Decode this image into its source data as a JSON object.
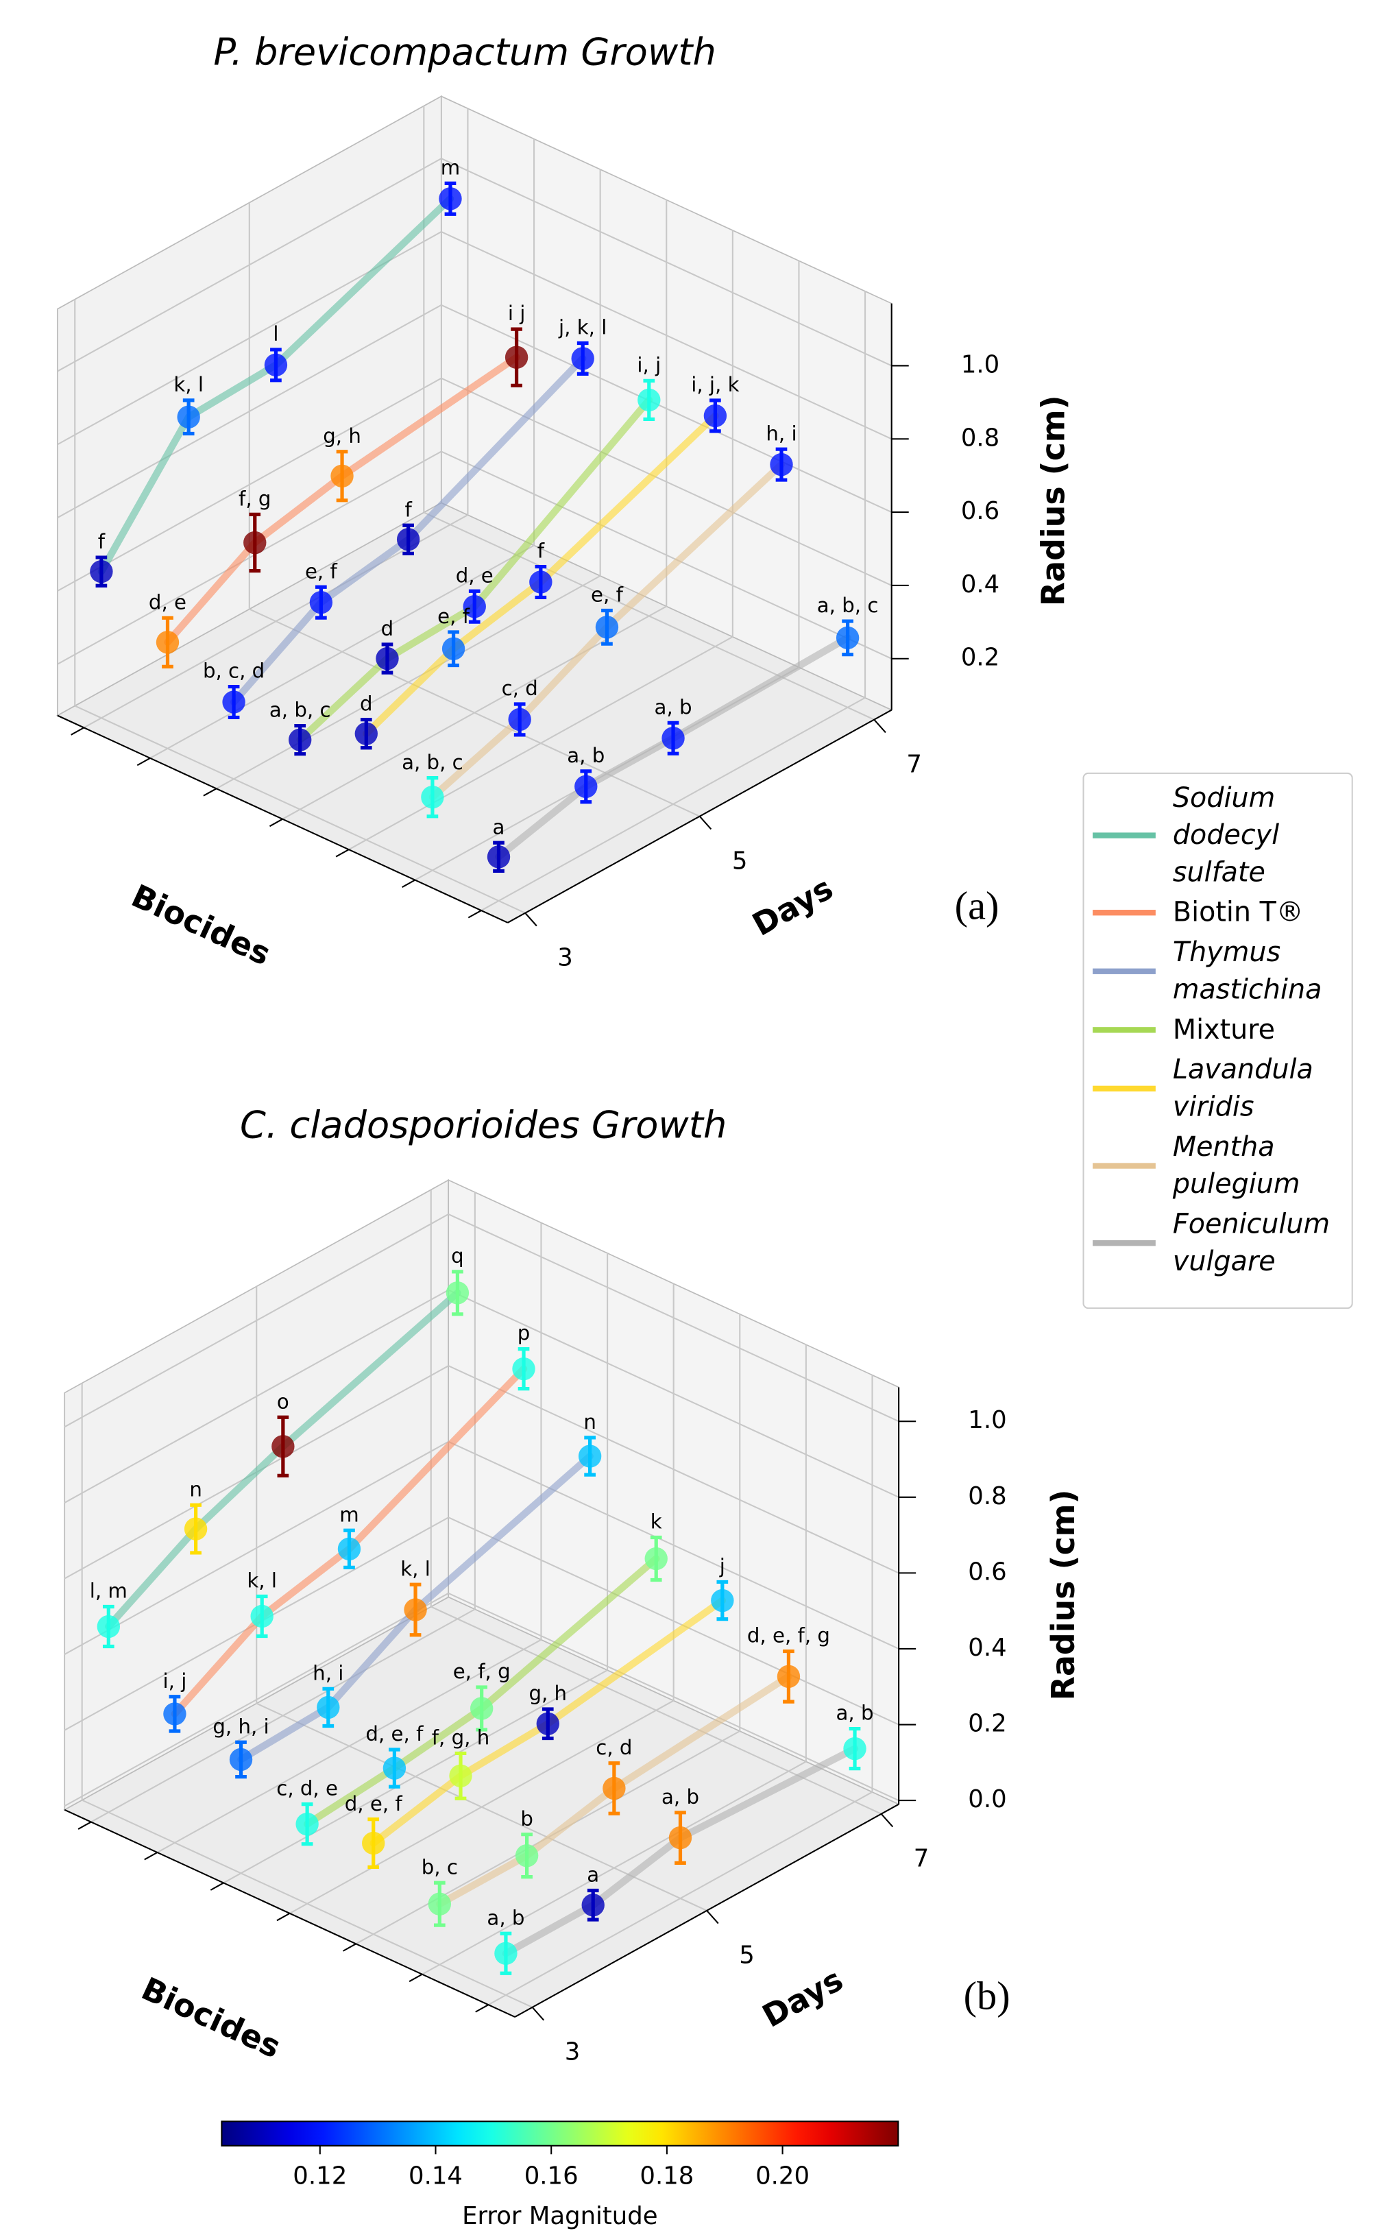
{
  "chart_data": [
    {
      "type": "line3d",
      "title": "P. brevicompactum Growth",
      "panel_label": "(a)",
      "xlabel": "Days",
      "ylabel": "Biocides",
      "zlabel": "Radius (cm)",
      "x": [
        3,
        4,
        5,
        7
      ],
      "xlim": [
        2.8,
        7.2
      ],
      "xticks": [
        3,
        5,
        7
      ],
      "zlim": [
        0.06,
        1.17
      ],
      "zticks": [
        0.2,
        0.4,
        0.6,
        0.8,
        {
          "value": 1,
          "label": "1.0"
        }
      ],
      "grid": true,
      "series": [
        {
          "name": "Sodium dodecyl sulfate",
          "italic": true,
          "color": "#66c2a5",
          "values": [
            0.46,
            0.75,
            0.76,
            0.95
          ],
          "errors": [
            0.11,
            0.13,
            0.12,
            0.12
          ],
          "letters": [
            "f",
            "k, l",
            "l",
            "m"
          ]
        },
        {
          "name": "Biotin T®",
          "italic": false,
          "color": "#fc8d62",
          "values": [
            0.35,
            0.49,
            0.54,
            0.6
          ],
          "errors": [
            0.19,
            0.22,
            0.19,
            0.22
          ],
          "letters": [
            "d, e",
            "f, g",
            "g, h",
            "i j"
          ]
        },
        {
          "name": "Thymus mastichina",
          "italic": true,
          "color": "#8da0cb",
          "values": [
            0.27,
            0.41,
            0.45,
            0.68
          ],
          "errors": [
            0.12,
            0.12,
            0.11,
            0.12
          ],
          "letters": [
            "b, c, d",
            "e, f",
            "f",
            "j, k, l"
          ]
        },
        {
          "name": "Mixture",
          "italic": false,
          "color": "#a6d854",
          "values": [
            0.25,
            0.34,
            0.35,
            0.65
          ],
          "errors": [
            0.11,
            0.11,
            0.12,
            0.15
          ],
          "letters": [
            "a, b, c",
            "d",
            "d, e",
            "i, j"
          ]
        },
        {
          "name": "Lavandula viridis",
          "italic": true,
          "color": "#ffd92f",
          "values": [
            0.35,
            0.45,
            0.5,
            0.69
          ],
          "errors": [
            0.11,
            0.13,
            0.12,
            0.12
          ],
          "letters": [
            "d",
            "e, f",
            "f",
            "i, j, k"
          ]
        },
        {
          "name": "Mentha pulegium",
          "italic": true,
          "color": "#e5c494",
          "values": [
            0.26,
            0.34,
            0.46,
            0.64
          ],
          "errors": [
            0.15,
            0.12,
            0.13,
            0.12
          ],
          "letters": [
            "a, b, c",
            "c, d",
            "e, f",
            "h, i"
          ]
        },
        {
          "name": "Foeniculum vulgare",
          "italic": true,
          "color": "#b3b3b3",
          "values": [
            0.18,
            0.24,
            0.24,
            0.25
          ],
          "errors": [
            0.11,
            0.12,
            0.12,
            0.13
          ],
          "letters": [
            "a",
            "a, b",
            "a, b",
            "a, b, c"
          ]
        }
      ]
    },
    {
      "type": "line3d",
      "title": "C. cladosporioides Growth",
      "panel_label": "(b)",
      "xlabel": "Days",
      "ylabel": "Biocides",
      "zlabel": "Radius (cm)",
      "x": [
        3,
        4,
        5,
        7
      ],
      "xlim": [
        2.8,
        7.2
      ],
      "xticks": [
        3,
        5,
        7
      ],
      "zlim": [
        -0.01,
        1.09
      ],
      "zticks": [
        {
          "value": 0,
          "label": "0.0"
        },
        0.2,
        0.4,
        0.6,
        0.8,
        {
          "value": 1,
          "label": "1.0"
        }
      ],
      "grid": true,
      "series": [
        {
          "color": "#66c2a5",
          "values": [
            0.48,
            0.61,
            0.7,
            0.85
          ],
          "errors": [
            0.15,
            0.18,
            0.22,
            0.16
          ],
          "letters": [
            "l, m",
            "n",
            "o",
            "q"
          ]
        },
        {
          "color": "#fc8d62",
          "values": [
            0.33,
            0.46,
            0.51,
            0.73
          ],
          "errors": [
            0.13,
            0.15,
            0.14,
            0.15
          ],
          "letters": [
            "i, j",
            "k, l",
            "m",
            "p"
          ]
        },
        {
          "color": "#8da0cb",
          "values": [
            0.29,
            0.3,
            0.43,
            0.58
          ],
          "errors": [
            0.13,
            0.14,
            0.19,
            0.14
          ],
          "letters": [
            "g, h, i",
            "h, i",
            "k, l",
            "n"
          ]
        },
        {
          "color": "#a6d854",
          "values": [
            0.2,
            0.22,
            0.25,
            0.39
          ],
          "errors": [
            0.15,
            0.14,
            0.16,
            0.16
          ],
          "letters": [
            "c, d, e",
            "d, e, f",
            "e, f, g",
            "k"
          ]
        },
        {
          "color": "#ffd92f",
          "values": [
            0.23,
            0.28,
            0.29,
            0.36
          ],
          "errors": [
            0.18,
            0.17,
            0.11,
            0.14
          ],
          "letters": [
            "d, e, f",
            "f, g, h",
            "g, h",
            "j"
          ]
        },
        {
          "color": "#e5c494",
          "values": [
            0.15,
            0.15,
            0.2,
            0.24
          ],
          "errors": [
            0.16,
            0.16,
            0.19,
            0.19
          ],
          "letters": [
            "b, c",
            "b",
            "c, d",
            "d, e, f, g"
          ]
        },
        {
          "color": "#b3b3b3",
          "values": [
            0.1,
            0.1,
            0.15,
            0.13
          ],
          "errors": [
            0.15,
            0.11,
            0.19,
            0.15
          ],
          "letters": [
            "a, b",
            "a",
            "a, b",
            "a, b"
          ]
        }
      ]
    }
  ],
  "colorbar": {
    "label": "Error Magnitude",
    "colormap": "jet",
    "lim": [
      0.103,
      0.22
    ],
    "ticks": [
      0.12,
      0.14,
      0.16,
      0.18,
      {
        "value": 0.2,
        "label": "0.20"
      }
    ]
  }
}
